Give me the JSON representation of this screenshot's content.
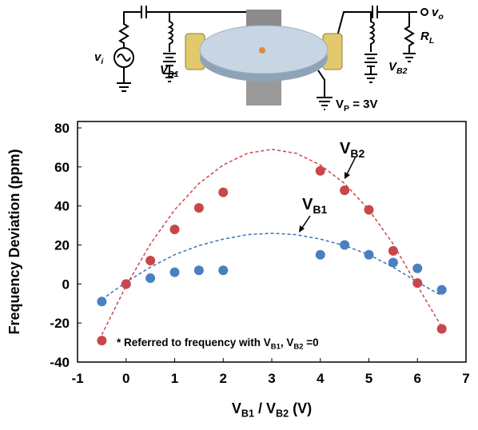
{
  "diagram": {
    "labels": [
      [
        "v",
        "i"
      ],
      [
        "V",
        "B1"
      ],
      [
        "V",
        "B2"
      ],
      [
        "R",
        "L"
      ],
      [
        "v",
        "o"
      ],
      [
        "V",
        "P",
        " = 3V"
      ]
    ]
  },
  "chart_data": {
    "type": "scatter",
    "ylabel": "Frequency Deviation (ppm)",
    "xlabel": [
      "V",
      "B1",
      " / V",
      "B2",
      " (V)"
    ],
    "xlim": [
      -1,
      7
    ],
    "ylim": [
      -40,
      80
    ],
    "xticks": [
      -1,
      0,
      1,
      2,
      3,
      4,
      5,
      6,
      7
    ],
    "yticks": [
      -40,
      -20,
      0,
      20,
      40,
      60,
      80
    ],
    "series": [
      {
        "color": "#4a7fc1",
        "x": [
          -0.5,
          0,
          0.5,
          1,
          1.5,
          2,
          4,
          4.5,
          5,
          5.5,
          6,
          6.5
        ],
        "values": [
          -9,
          0,
          3,
          6,
          7,
          7,
          15,
          20,
          15,
          11,
          8,
          -3
        ]
      },
      {
        "color": "#c9474a",
        "x": [
          -0.5,
          0,
          0.5,
          1,
          1.5,
          2,
          4,
          4.5,
          5,
          5.5,
          6,
          6.5
        ],
        "values": [
          -29,
          0,
          12,
          28,
          39,
          47,
          58,
          48,
          38,
          17,
          0.5,
          -23
        ]
      }
    ],
    "fits": [
      {
        "color": "#3a72b8",
        "x": [
          -0.5,
          0,
          0.5,
          1,
          1.5,
          2,
          2.5,
          3,
          3.5,
          4,
          4.5,
          5,
          5.5,
          6,
          6.5
        ],
        "values": [
          -8,
          1,
          8.6,
          15,
          19.7,
          23,
          25.3,
          26,
          25.3,
          23,
          19.7,
          15,
          8.6,
          1,
          -6
        ]
      },
      {
        "color": "#c9474a",
        "x": [
          -0.5,
          0,
          0.5,
          1,
          1.5,
          2,
          2.5,
          3,
          3.5,
          4,
          4.5,
          5,
          5.5,
          6,
          6.5
        ],
        "values": [
          -26,
          -1,
          20.5,
          38,
          51.5,
          61,
          67,
          69,
          67,
          61,
          51.5,
          38,
          20.5,
          -1,
          -22
        ]
      }
    ],
    "annotations": [
      [
        "V",
        "B2"
      ],
      [
        "V",
        "B1"
      ]
    ],
    "note": [
      "* Referred to frequency with V",
      "B1",
      ", V",
      "B2",
      " =0"
    ]
  }
}
